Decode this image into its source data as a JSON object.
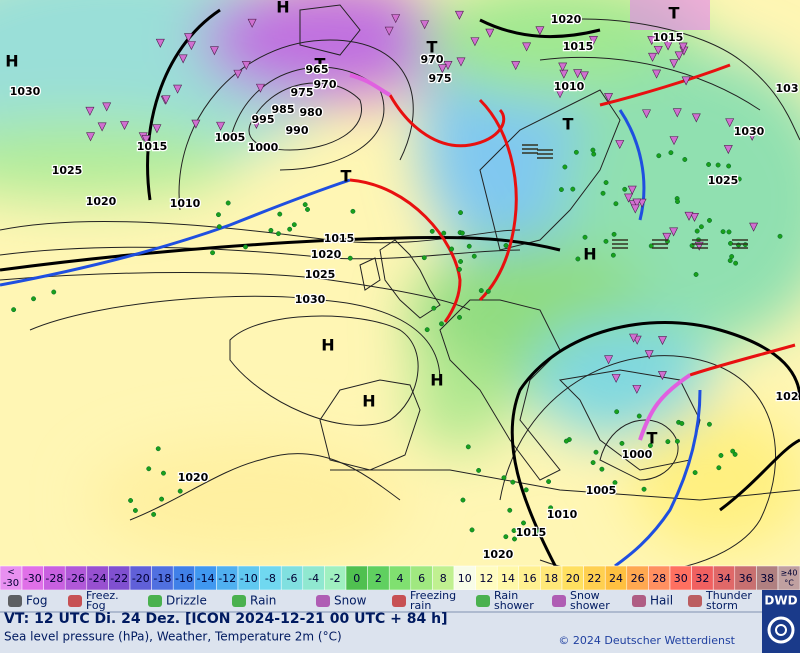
{
  "map": {
    "pressure_centers": [
      "H",
      "H",
      "H",
      "H",
      "H",
      "H",
      "T",
      "T",
      "T",
      "T",
      "T",
      "T"
    ],
    "isobar_labels": [
      1030,
      1015,
      1025,
      1020,
      1010,
      1005,
      1000,
      995,
      990,
      985,
      980,
      975,
      970,
      965,
      970,
      975,
      1020,
      1015,
      1015,
      1010,
      1030,
      1025,
      1015,
      1020,
      1025,
      1030,
      1000,
      1005,
      1010,
      1015,
      1020,
      1020,
      103,
      102
    ]
  },
  "scale": {
    "low": {
      "sign": "<",
      "value": -30
    },
    "values": [
      -30,
      -28,
      -26,
      -24,
      -22,
      -20,
      -18,
      -16,
      -14,
      -12,
      -10,
      -8,
      -6,
      -4,
      -2,
      0,
      2,
      4,
      6,
      8,
      10,
      12,
      14,
      16,
      18,
      20,
      22,
      24,
      26,
      28,
      30,
      32,
      34,
      36,
      38
    ],
    "colors": [
      "#e070e8",
      "#c860e0",
      "#b058d8",
      "#9850d0",
      "#8050d0",
      "#6060d8",
      "#5070e0",
      "#4080e8",
      "#4098f0",
      "#50b0f0",
      "#60c8f0",
      "#70d8f0",
      "#80e0e0",
      "#90e8d0",
      "#a0f0c0",
      "#50c050",
      "#60d060",
      "#80e070",
      "#a0e880",
      "#c0f090",
      "#f8fce8",
      "#fffcc0",
      "#fff8a8",
      "#fff090",
      "#ffe878",
      "#ffe060",
      "#ffd050",
      "#ffc040",
      "#ffa850",
      "#ff9060",
      "#ff7060",
      "#f06060",
      "#e06868",
      "#c87070",
      "#b08080"
    ],
    "low_color": "#e890f0",
    "high": {
      "sign": "≥40",
      "unit": "°C"
    },
    "high_color": "#c0a0a0"
  },
  "legend": [
    {
      "label": [
        "Fog"
      ]
    },
    {
      "label": [
        "Freez.",
        "Fog"
      ]
    },
    {
      "label": [
        "Drizzle"
      ]
    },
    {
      "label": [
        "Rain"
      ]
    },
    {
      "label": [
        "Snow"
      ]
    },
    {
      "label": [
        "Freezing",
        "rain"
      ]
    },
    {
      "label": [
        "Rain",
        "shower"
      ]
    },
    {
      "label": [
        "Snow",
        "shower"
      ]
    },
    {
      "label": [
        "Hail"
      ]
    },
    {
      "label": [
        "Thunder",
        "storm"
      ]
    }
  ],
  "footer": {
    "valid_time": "VT: 12 UTC Di.  24 Dez. [ICON 2024-12-21  00 UTC + 84 h]",
    "description": "Sea level pressure (hPa), Weather, Temperature 2m (°C)",
    "copyright": "© 2024 Deutscher Wetterdienst",
    "logo": "DWD"
  }
}
